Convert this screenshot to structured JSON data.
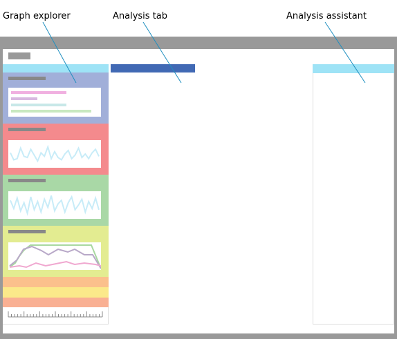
{
  "callouts": {
    "graph_explorer": "Graph explorer",
    "analysis_tab": "Analysis tab",
    "analysis_assistant": "Analysis assistant"
  },
  "colors": {
    "frame": "#999999",
    "header_light_blue": "#9ee3f6",
    "tab_dark_blue": "#4169b4",
    "panel_blue": "#a1afd9",
    "panel_red": "#f48a8d",
    "panel_green": "#a9d8a6",
    "panel_yellow": "#e3ec91",
    "strip_orange": "#fbc08c",
    "strip_yellow": "#fbe98a",
    "strip_salmon": "#f9b093",
    "sparkline": "#c8ecf8"
  },
  "explorer_panels": [
    {
      "name": "panel-blue",
      "color": "#a1afd9",
      "content": "bars"
    },
    {
      "name": "panel-red",
      "color": "#f48a8d",
      "content": "sparkline"
    },
    {
      "name": "panel-green",
      "color": "#a9d8a6",
      "content": "sparkline"
    },
    {
      "name": "panel-yellow",
      "color": "#e3ec91",
      "content": "area-lines"
    }
  ],
  "explorer_strips": [
    "#fbc08c",
    "#fbe98a",
    "#f9b093"
  ],
  "sparkline_red": [
    0.55,
    0.25,
    0.3,
    0.75,
    0.4,
    0.35,
    0.7,
    0.45,
    0.2,
    0.55,
    0.4,
    0.8,
    0.3,
    0.6,
    0.35,
    0.25,
    0.5,
    0.65,
    0.3,
    0.45,
    0.75,
    0.35,
    0.5,
    0.3,
    0.55,
    0.7,
    0.4
  ],
  "sparkline_green": [
    0.7,
    0.35,
    0.8,
    0.25,
    0.6,
    0.15,
    0.85,
    0.3,
    0.65,
    0.2,
    0.75,
    0.4,
    0.9,
    0.25,
    0.55,
    0.7,
    0.2,
    0.6,
    0.85,
    0.3,
    0.5,
    0.75,
    0.2,
    0.65,
    0.35,
    0.8,
    0.3
  ]
}
